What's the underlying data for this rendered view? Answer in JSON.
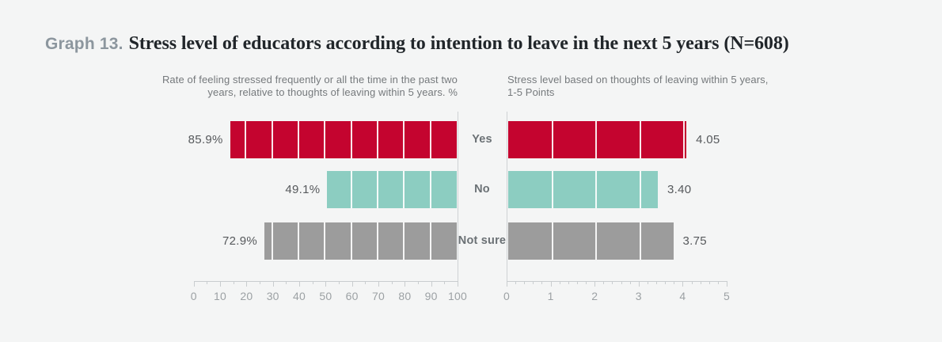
{
  "header": {
    "label": "Graph 13.",
    "title": "Stress level of educators according to intention to leave in the next 5 years (N=608)"
  },
  "colors": {
    "yes_bar": "#C4042F",
    "no_bar": "#8CCDC1",
    "not_sure_bar": "#9C9C9C",
    "background": "#F4F5F5",
    "axis": "#C9CDCF",
    "tick_label": "#9CA1A4",
    "value_label": "#56595C",
    "category_label": "#6B7175",
    "title_text": "#21262A",
    "graph_label_text": "#8C969E",
    "subtitle_text": "#75797C"
  },
  "categories": [
    "Yes",
    "No",
    "Not sure"
  ],
  "chart_data": [
    {
      "id": "stress-rate",
      "type": "bar",
      "orientation": "horizontal",
      "axis_reversed": true,
      "subtitle_lines": [
        "Rate of feeling stressed frequently or all the time in the past two",
        "years, relative to thoughts of leaving within 5 years. %"
      ],
      "categories": [
        "Yes",
        "No",
        "Not sure"
      ],
      "values": [
        85.9,
        49.1,
        72.9
      ],
      "value_labels": [
        "85.9%",
        "49.1%",
        "72.9%"
      ],
      "bar_colors": [
        "#C4042F",
        "#8CCDC1",
        "#9C9C9C"
      ],
      "xlim": [
        0,
        100
      ],
      "major_tick_step": 10,
      "minor_tick_step": 5,
      "tick_labels": [
        "100",
        "90",
        "80",
        "70",
        "60",
        "50",
        "40",
        "30",
        "20",
        "10",
        "0"
      ],
      "grid": "white-lines-on-bars",
      "legend": "none"
    },
    {
      "id": "stress-level",
      "type": "bar",
      "orientation": "horizontal",
      "axis_reversed": false,
      "subtitle_lines": [
        "Stress level based on thoughts of leaving within 5 years,",
        "1-5 Points"
      ],
      "categories": [
        "Yes",
        "No",
        "Not sure"
      ],
      "values": [
        4.05,
        3.4,
        3.75
      ],
      "value_labels": [
        "4.05",
        "3.40",
        "3.75"
      ],
      "bar_colors": [
        "#C4042F",
        "#8CCDC1",
        "#9C9C9C"
      ],
      "xlim": [
        0,
        5
      ],
      "major_tick_step": 1,
      "minor_tick_step": 0.2,
      "tick_labels": [
        "0",
        "1",
        "2",
        "3",
        "4",
        "5"
      ],
      "grid": "white-lines-on-bars",
      "legend": "none"
    }
  ]
}
